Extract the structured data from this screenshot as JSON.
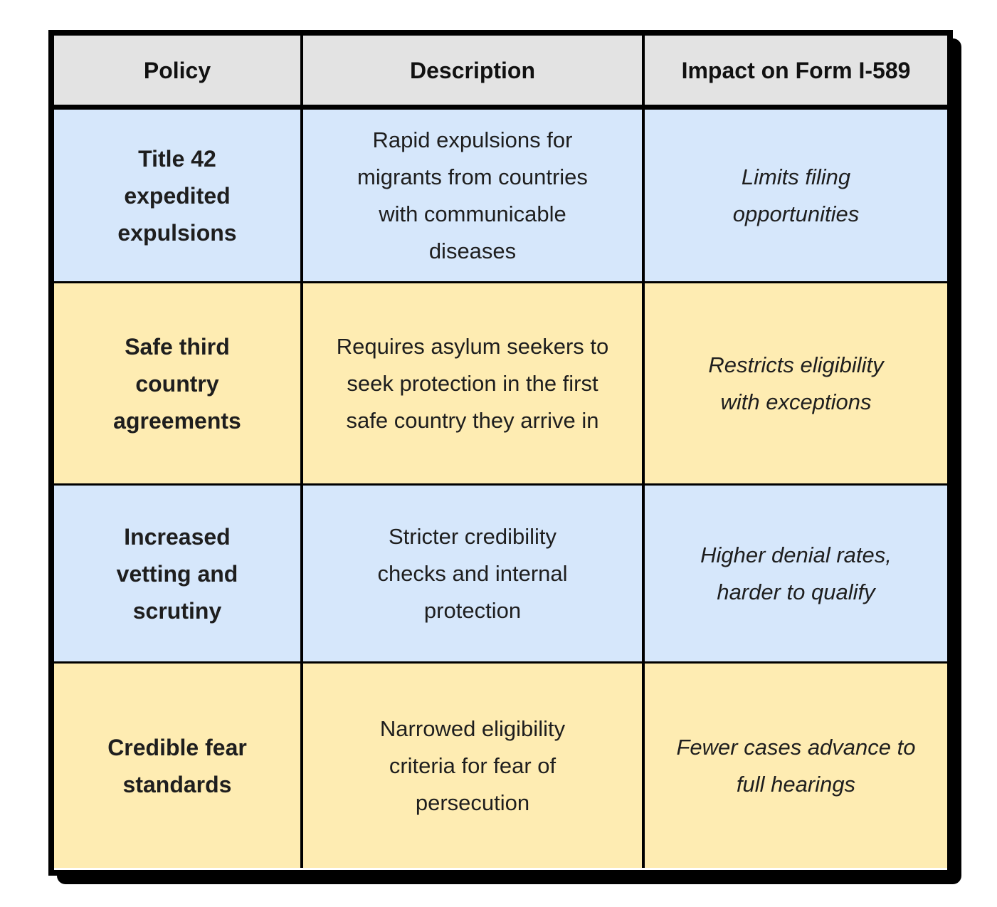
{
  "chart_data": {
    "type": "table",
    "columns": [
      "Policy",
      "Description",
      "Impact on Form I-589"
    ],
    "rows": [
      [
        "Title 42 expedited expulsions",
        "Rapid expulsions for migrants from countries with communicable diseases",
        "Limits filing opportunities"
      ],
      [
        "Safe third country agreements",
        "Requires asylum seekers to seek protection in the first safe country they arrive in",
        "Restricts eligibility with exceptions"
      ],
      [
        "Increased vetting and scrutiny",
        "Stricter credibility checks and internal protection",
        "Higher denial rates, harder to qualify"
      ],
      [
        "Credible fear standards",
        "Narrowed eligibility criteria for fear of persecution",
        "Fewer cases advance to full hearings"
      ]
    ],
    "title": "",
    "layout_hints": {
      "header_style": "bold on gray",
      "policy_column_style": "bold",
      "impact_column_style": "italic",
      "row_banding": [
        "blue",
        "yellow",
        "blue",
        "yellow"
      ]
    }
  },
  "table": {
    "headers": [
      "Policy",
      "Description",
      "Impact on Form I-589"
    ],
    "rows": [
      {
        "policy": "Title 42\nexpedited\nexpulsions",
        "description": "Rapid expulsions for\nmigrants from countries\nwith communicable\ndiseases",
        "impact": "Limits filing\nopportunities"
      },
      {
        "policy": "Safe third\ncountry\nagreements",
        "description": "Requires asylum seekers to\nseek protection in the first\nsafe country they arrive in",
        "impact": "Restricts eligibility\nwith exceptions"
      },
      {
        "policy": "Increased\nvetting and\nscrutiny",
        "description": "Stricter credibility\nchecks and internal\nprotection",
        "impact": "Higher denial rates,\nharder to qualify"
      },
      {
        "policy": "Credible fear\nstandards",
        "description": "Narrowed eligibility\ncriteria for fear of\npersecution",
        "impact": "Fewer cases advance to\nfull hearings"
      }
    ]
  },
  "colors": {
    "page_bg": "#ffffff",
    "header_bg": "#e3e3e3",
    "row_blue": "#d6e7fb",
    "row_yellow": "#feecb2",
    "border": "#000000",
    "text": "#1e1e1e"
  }
}
